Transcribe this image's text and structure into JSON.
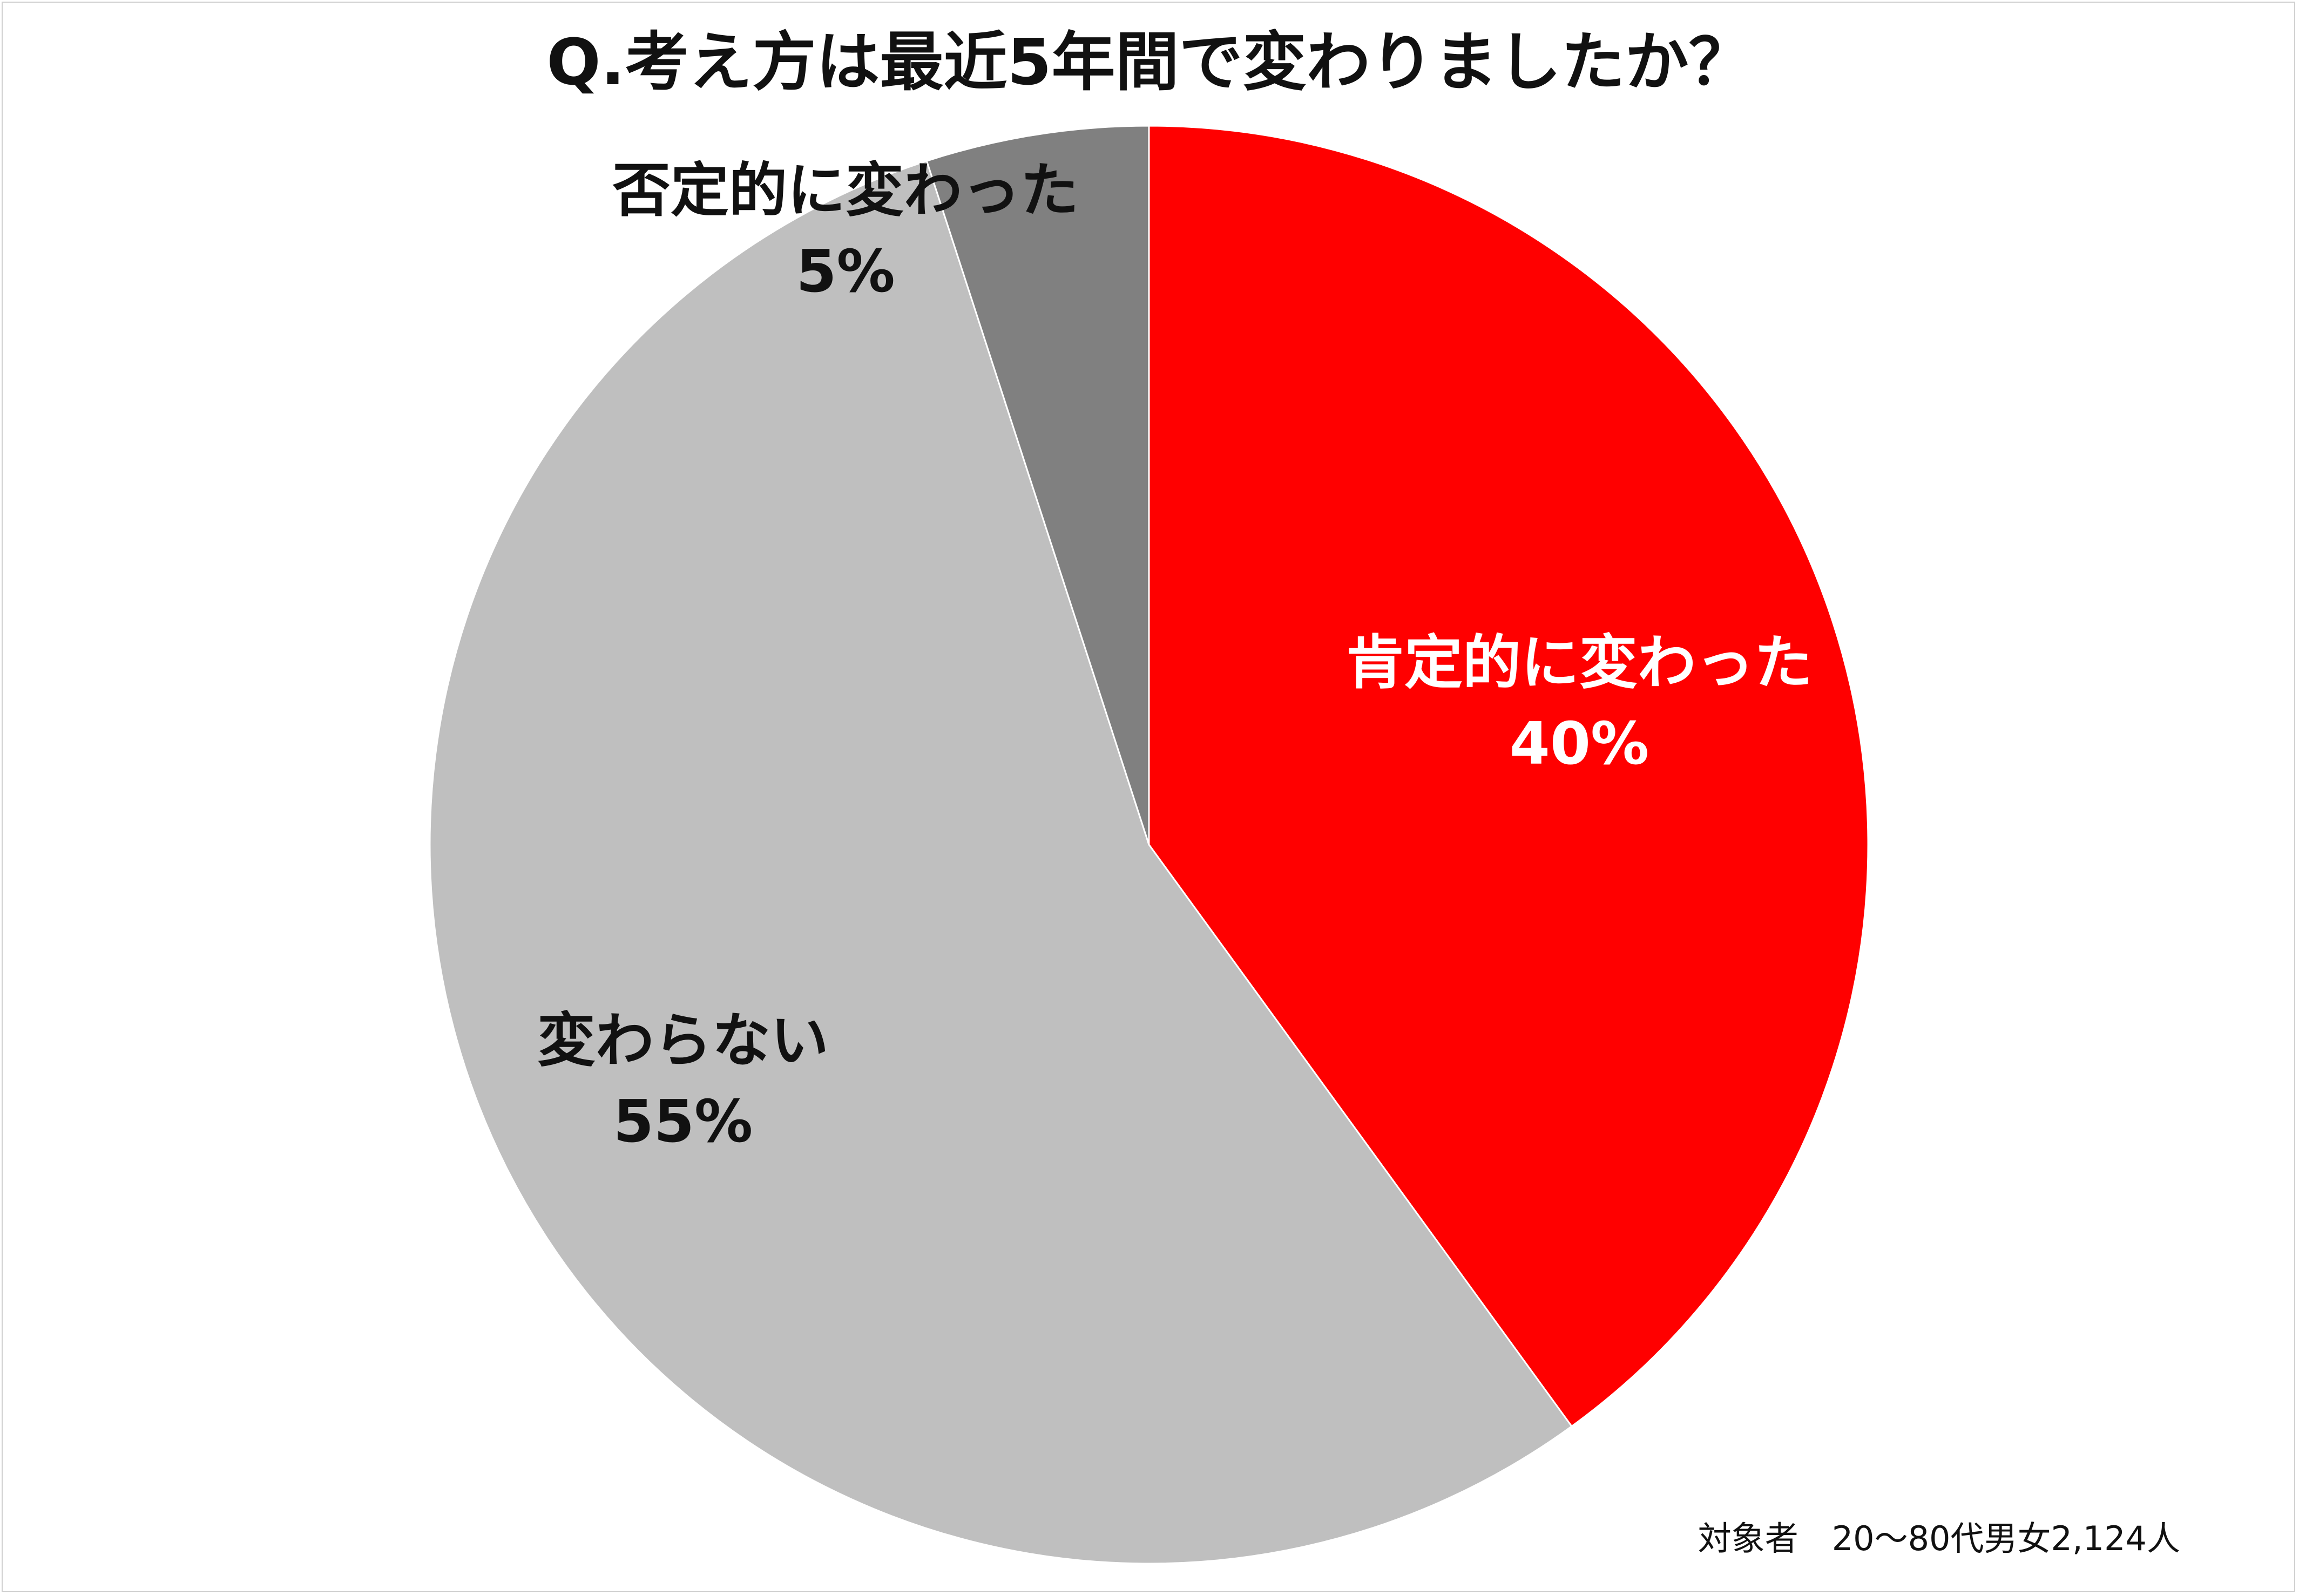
{
  "chart_data": {
    "type": "pie",
    "title": "Q.考え方は最近5年間で変わりましたか？",
    "slices": [
      {
        "label": "肯定的に変わった",
        "value": 40,
        "value_label": "40%",
        "color": "#ff0000",
        "text_color": "#ffffff"
      },
      {
        "label": "変わらない",
        "value": 55,
        "value_label": "55%",
        "color": "#bfbfbf",
        "text_color": "#111111"
      },
      {
        "label": "否定的に変わった",
        "value": 5,
        "value_label": "5%",
        "color": "#808080",
        "text_color": "#111111"
      }
    ],
    "start_angle": "12 o'clock",
    "direction": "clockwise",
    "legend": "none",
    "note": "対象者　20～80代男女2,124人"
  }
}
